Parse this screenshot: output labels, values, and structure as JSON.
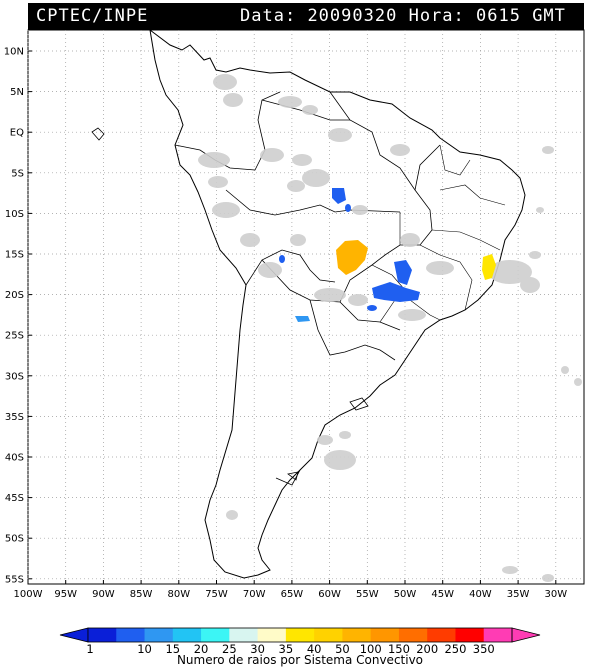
{
  "header": {
    "source": "CPTEC/INPE",
    "data_label": "Data:",
    "date": "20090320",
    "hora_label": "Hora:",
    "time": "0615 GMT"
  },
  "map": {
    "lat_labels": [
      "10N",
      "5N",
      "EQ",
      "5S",
      "10S",
      "15S",
      "20S",
      "25S",
      "30S",
      "35S",
      "40S",
      "45S",
      "50S",
      "55S"
    ],
    "lon_labels": [
      "100W",
      "95W",
      "90W",
      "85W",
      "80W",
      "75W",
      "70W",
      "65W",
      "60W",
      "55W",
      "50W",
      "45W",
      "40W",
      "35W",
      "30W"
    ],
    "gridlines": true,
    "cloud_color": "#cfcfcf",
    "coast_color": "#000000"
  },
  "colorbar": {
    "ticks": [
      "1",
      "10",
      "15",
      "20",
      "25",
      "30",
      "35",
      "40",
      "50",
      "100",
      "150",
      "200",
      "250",
      "350"
    ],
    "colors": [
      "#0a1fd8",
      "#1f5ff0",
      "#2f97f2",
      "#22c4f4",
      "#3cf5f5",
      "#d8f5f0",
      "#fffbc8",
      "#ffe600",
      "#ffd200",
      "#ffb400",
      "#ff9600",
      "#ff6e00",
      "#ff3c00",
      "#ff0000",
      "#ff3cb4"
    ],
    "caption": "Numero de raios por Sistema Convectivo"
  }
}
